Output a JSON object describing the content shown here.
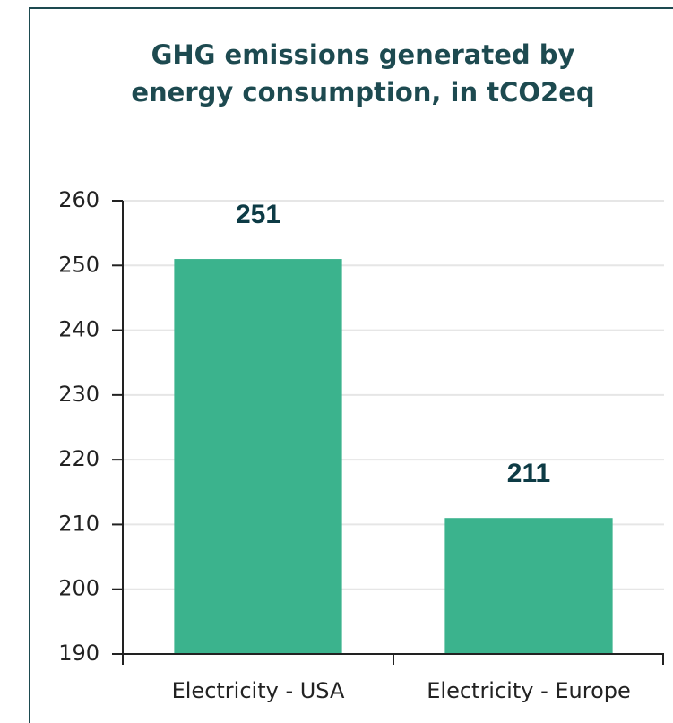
{
  "chart_data": {
    "type": "bar",
    "title": "GHG emissions generated by energy consumption, in tCO2eq",
    "categories": [
      "Electricity - USA",
      "Electricity - Europe"
    ],
    "values": [
      251,
      211
    ],
    "color": "#3bb38d",
    "ylim": [
      190,
      260
    ],
    "yticks": [
      190,
      200,
      210,
      220,
      230,
      240,
      250,
      260
    ],
    "grid": true
  }
}
